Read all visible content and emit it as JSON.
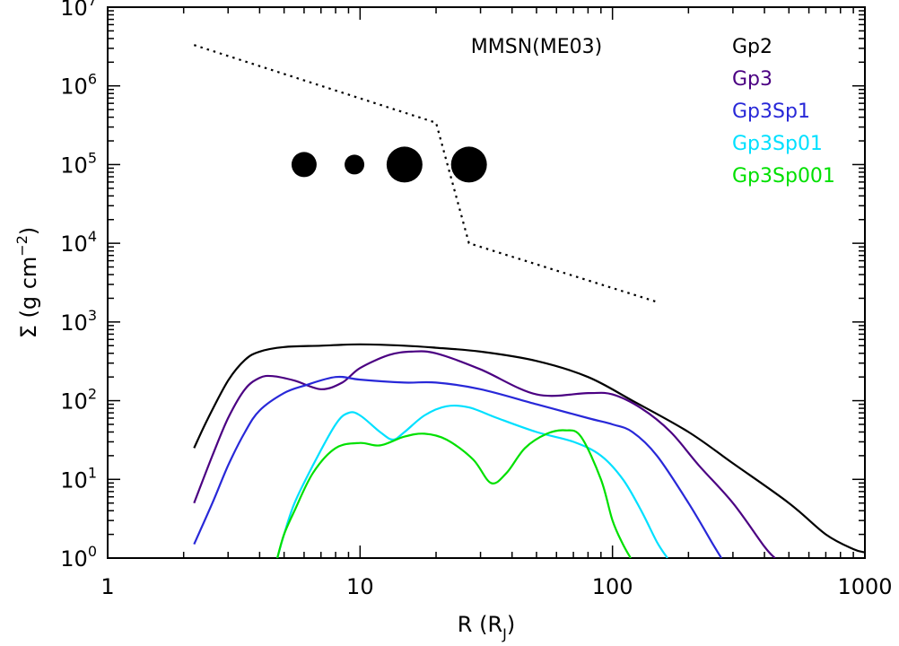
{
  "chart_data": {
    "type": "line",
    "x_scale": "log",
    "y_scale": "log",
    "xlim": [
      1,
      1000
    ],
    "ylim": [
      1,
      10000000
    ],
    "x_ticks": [
      {
        "value": 1,
        "label": "1"
      },
      {
        "value": 10,
        "label": "10"
      },
      {
        "value": 100,
        "label": "100"
      },
      {
        "value": 1000,
        "label": "1000"
      }
    ],
    "y_ticks": [
      {
        "value": 1,
        "base": "10",
        "exp": "0"
      },
      {
        "value": 10,
        "base": "10",
        "exp": "1"
      },
      {
        "value": 100,
        "base": "10",
        "exp": "2"
      },
      {
        "value": 1000,
        "base": "10",
        "exp": "3"
      },
      {
        "value": 10000,
        "base": "10",
        "exp": "4"
      },
      {
        "value": 100000,
        "base": "10",
        "exp": "5"
      },
      {
        "value": 1000000,
        "base": "10",
        "exp": "6"
      },
      {
        "value": 10000000,
        "base": "10",
        "exp": "7"
      }
    ],
    "xlabel": {
      "main": "R  (R",
      "sub": "J",
      "close": ")"
    },
    "ylabel": {
      "main": "Σ  (g cm",
      "sup": "−2",
      "close": ")"
    },
    "grid": false,
    "legend_position": "top-right",
    "series": [
      {
        "name": "Gp2",
        "color": "#000000",
        "points": [
          [
            2.2,
            25
          ],
          [
            2.5,
            60
          ],
          [
            3,
            180
          ],
          [
            3.5,
            330
          ],
          [
            4,
            420
          ],
          [
            5,
            480
          ],
          [
            7,
            500
          ],
          [
            10,
            520
          ],
          [
            15,
            500
          ],
          [
            20,
            470
          ],
          [
            30,
            420
          ],
          [
            50,
            320
          ],
          [
            80,
            200
          ],
          [
            120,
            100
          ],
          [
            200,
            40
          ],
          [
            300,
            16
          ],
          [
            500,
            5
          ],
          [
            700,
            2
          ],
          [
            900,
            1.3
          ],
          [
            1000,
            1.18
          ]
        ]
      },
      {
        "name": "Gp3",
        "color": "#4b0082",
        "points": [
          [
            2.2,
            5
          ],
          [
            2.6,
            20
          ],
          [
            3,
            60
          ],
          [
            3.5,
            140
          ],
          [
            4,
            195
          ],
          [
            4.5,
            205
          ],
          [
            5.5,
            180
          ],
          [
            7,
            140
          ],
          [
            8.5,
            170
          ],
          [
            10,
            260
          ],
          [
            13,
            380
          ],
          [
            16,
            420
          ],
          [
            20,
            400
          ],
          [
            30,
            250
          ],
          [
            50,
            120
          ],
          [
            80,
            125
          ],
          [
            100,
            120
          ],
          [
            130,
            80
          ],
          [
            170,
            40
          ],
          [
            220,
            15
          ],
          [
            300,
            5
          ],
          [
            400,
            1.4
          ],
          [
            440,
            1
          ]
        ]
      },
      {
        "name": "Gp3Sp1",
        "color": "#2828d8",
        "points": [
          [
            2.2,
            1.5
          ],
          [
            2.6,
            5
          ],
          [
            3,
            15
          ],
          [
            3.5,
            40
          ],
          [
            4,
            75
          ],
          [
            5,
            125
          ],
          [
            6,
            155
          ],
          [
            8,
            200
          ],
          [
            10,
            185
          ],
          [
            15,
            170
          ],
          [
            20,
            170
          ],
          [
            30,
            140
          ],
          [
            50,
            90
          ],
          [
            80,
            60
          ],
          [
            100,
            50
          ],
          [
            120,
            40
          ],
          [
            150,
            20
          ],
          [
            200,
            5
          ],
          [
            250,
            1.5
          ],
          [
            270,
            1
          ]
        ]
      },
      {
        "name": "Gp3Sp01",
        "color": "#00e0ff",
        "points": [
          [
            4.7,
            1
          ],
          [
            5,
            2
          ],
          [
            5.5,
            5
          ],
          [
            6.5,
            15
          ],
          [
            8,
            50
          ],
          [
            9,
            70
          ],
          [
            10,
            65
          ],
          [
            12,
            40
          ],
          [
            13.5,
            32
          ],
          [
            15,
            40
          ],
          [
            18,
            65
          ],
          [
            22,
            85
          ],
          [
            27,
            82
          ],
          [
            35,
            60
          ],
          [
            50,
            40
          ],
          [
            70,
            30
          ],
          [
            90,
            20
          ],
          [
            110,
            10
          ],
          [
            130,
            4
          ],
          [
            150,
            1.6
          ],
          [
            165,
            1
          ]
        ]
      },
      {
        "name": "Gp3Sp001",
        "color": "#00e000",
        "points": [
          [
            4.7,
            1
          ],
          [
            5,
            2
          ],
          [
            5.5,
            4
          ],
          [
            6.5,
            12
          ],
          [
            8,
            25
          ],
          [
            10,
            29
          ],
          [
            12,
            27
          ],
          [
            15,
            35
          ],
          [
            18,
            38
          ],
          [
            22,
            32
          ],
          [
            28,
            18
          ],
          [
            33,
            9
          ],
          [
            38,
            12
          ],
          [
            45,
            25
          ],
          [
            55,
            38
          ],
          [
            65,
            42
          ],
          [
            75,
            35
          ],
          [
            90,
            10
          ],
          [
            100,
            3
          ],
          [
            110,
            1.5
          ],
          [
            118,
            1
          ]
        ]
      },
      {
        "name": "MMSN(ME03)",
        "color": "#000000",
        "dashed": true,
        "points": [
          [
            2.2,
            3300000
          ],
          [
            20,
            340000
          ],
          [
            27,
            10000
          ],
          [
            150,
            1800
          ]
        ]
      }
    ],
    "markers": [
      {
        "x": 6,
        "y": 100000,
        "size": "medium"
      },
      {
        "x": 9.5,
        "y": 100000,
        "size": "small"
      },
      {
        "x": 15,
        "y": 100000,
        "size": "large"
      },
      {
        "x": 27,
        "y": 100000,
        "size": "large"
      }
    ],
    "annotation": "MMSN(ME03)",
    "legend": [
      {
        "label": "Gp2",
        "color": "#000000"
      },
      {
        "label": "Gp3",
        "color": "#4b0082"
      },
      {
        "label": "Gp3Sp1",
        "color": "#2828d8"
      },
      {
        "label": "Gp3Sp01",
        "color": "#00e0ff"
      },
      {
        "label": "Gp3Sp001",
        "color": "#00e000"
      }
    ]
  }
}
